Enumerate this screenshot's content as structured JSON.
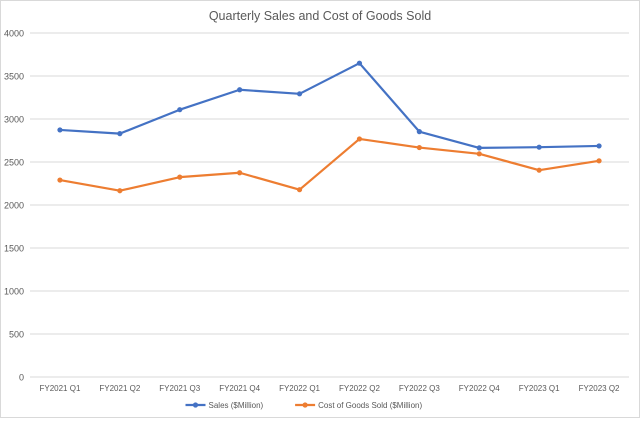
{
  "chart_data": {
    "type": "line",
    "title": "Quarterly Sales and Cost of Goods Sold",
    "xlabel": "",
    "ylabel": "",
    "ylim": [
      0,
      4000
    ],
    "yticks": [
      0,
      500,
      1000,
      1500,
      2000,
      2500,
      3000,
      3500,
      4000
    ],
    "grid": true,
    "legend": "bottom",
    "categories": [
      "FY2021 Q1",
      "FY2021 Q2",
      "FY2021 Q3",
      "FY2021 Q4",
      "FY2022 Q1",
      "FY2022 Q2",
      "FY2022 Q3",
      "FY2022 Q4",
      "FY2023 Q1",
      "FY2023 Q2"
    ],
    "series": [
      {
        "name": "Sales ($Million)",
        "color": "#4472c4",
        "values": [
          2873,
          2830,
          3108,
          3340,
          3293,
          3649,
          2853,
          2664,
          2672,
          2687
        ]
      },
      {
        "name": "Cost of Goods Sold ($Million)",
        "color": "#ed7d31",
        "values": [
          2290,
          2166,
          2324,
          2375,
          2178,
          2768,
          2668,
          2595,
          2405,
          2514
        ]
      }
    ]
  }
}
